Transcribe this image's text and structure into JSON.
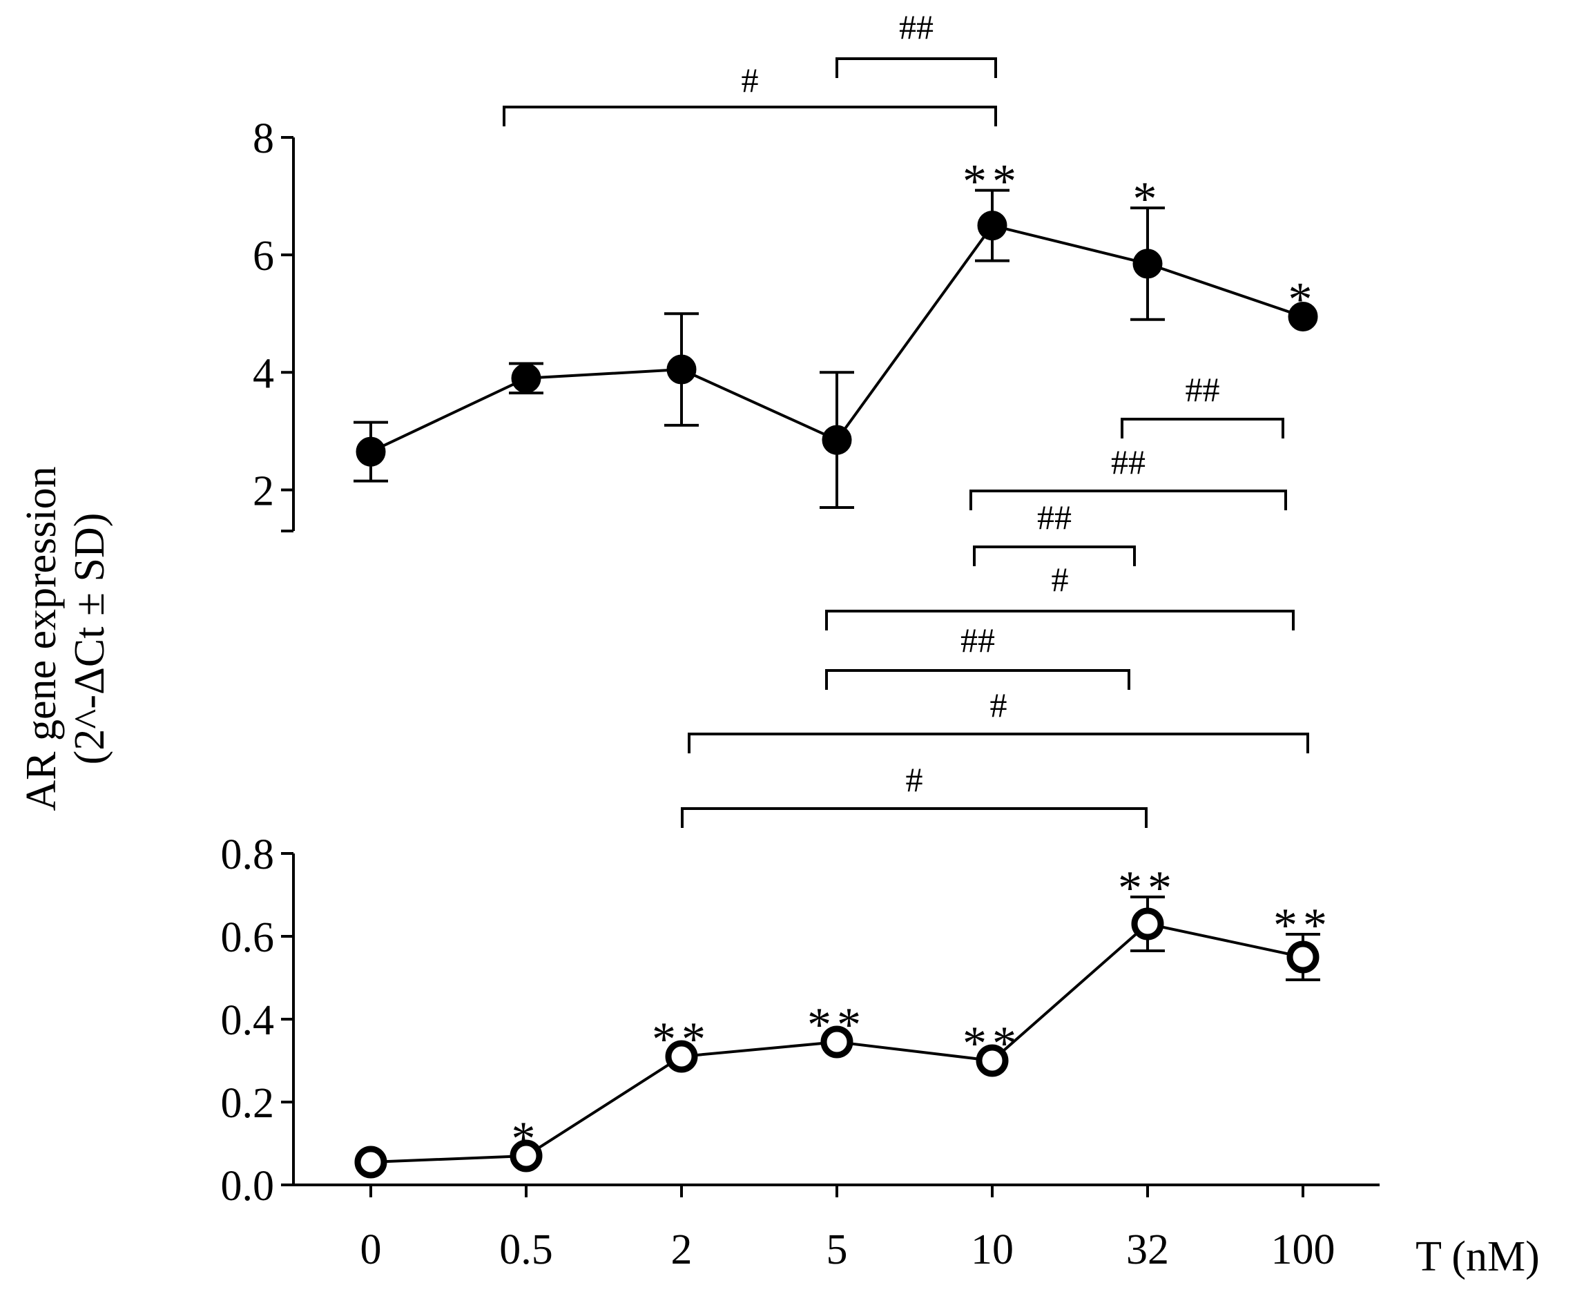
{
  "chart_data": {
    "type": "line",
    "ylabel_line1": "AR gene expression",
    "ylabel_line2": "(2^-ΔCt ± SD)",
    "xlabel": "T (nM)",
    "categories": [
      "0",
      "0.5",
      "2",
      "5",
      "10",
      "32",
      "100"
    ],
    "panels": [
      {
        "name": "upper",
        "marker": "filled-circle",
        "ylim": [
          1.3,
          8
        ],
        "yticks": [
          2,
          4,
          6,
          8
        ],
        "ytick_labels": [
          "2",
          "4",
          "6",
          "8"
        ],
        "values": [
          2.65,
          3.9,
          4.05,
          2.85,
          6.5,
          5.85,
          4.95
        ],
        "sd": [
          0.5,
          0.25,
          0.95,
          1.15,
          0.6,
          0.95,
          0
        ],
        "significance": [
          "",
          "",
          "",
          "",
          "**",
          "*",
          "*"
        ],
        "brackets": [
          {
            "from": 1,
            "to": 4,
            "label": "#"
          },
          {
            "from": 3,
            "to": 4,
            "label": "##"
          },
          {
            "from": 5,
            "to": 6,
            "label": "##"
          },
          {
            "from": 4,
            "to": 6,
            "label": "##"
          },
          {
            "from": 4,
            "to": 5,
            "label": "##"
          },
          {
            "from": 3,
            "to": 6,
            "label": "#"
          },
          {
            "from": 3,
            "to": 5,
            "label": "##"
          },
          {
            "from": 2,
            "to": 6,
            "label": "#"
          },
          {
            "from": 2,
            "to": 5,
            "label": "#"
          }
        ]
      },
      {
        "name": "lower",
        "marker": "open-circle",
        "ylim": [
          0,
          0.8
        ],
        "yticks": [
          0,
          0.2,
          0.4,
          0.6,
          0.8
        ],
        "ytick_labels": [
          "0.0",
          "0.2",
          "0.4",
          "0.6",
          "0.8"
        ],
        "values": [
          0.055,
          0.07,
          0.31,
          0.345,
          0.3,
          0.63,
          0.55
        ],
        "sd": [
          0,
          0,
          0,
          0,
          0,
          0.065,
          0.055
        ],
        "significance": [
          "",
          "*",
          "**",
          "**",
          "**",
          "**",
          "**"
        ]
      }
    ]
  }
}
